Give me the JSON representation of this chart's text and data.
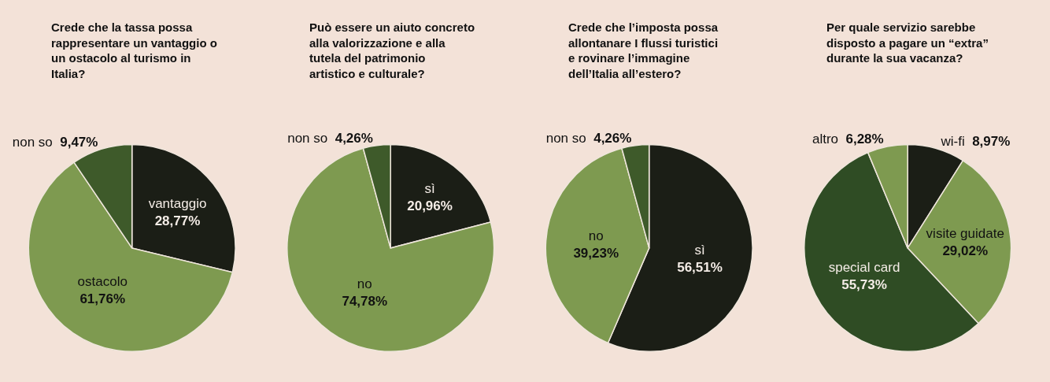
{
  "chart_data": [
    {
      "type": "pie",
      "title": "Crede che la tassa possa rappresentare un vantaggio o un ostacolo al turismo in Italia?",
      "categories": [
        "vantaggio",
        "ostacolo",
        "non so"
      ],
      "values": [
        28.77,
        61.76,
        9.47
      ],
      "value_labels": [
        "28,77%",
        "61,76%",
        "9,47%"
      ],
      "colors": [
        "#1b1e16",
        "#7e9a50",
        "#3e5a2a"
      ]
    },
    {
      "type": "pie",
      "title": "Può essere un aiuto concreto alla valorizzazione e alla tutela del patrimonio artistico e culturale?",
      "categories": [
        "sì",
        "no",
        "non so"
      ],
      "values": [
        20.96,
        74.78,
        4.26
      ],
      "value_labels": [
        "20,96%",
        "74,78%",
        "4,26%"
      ],
      "colors": [
        "#1b1e16",
        "#7e9a50",
        "#3e5a2a"
      ]
    },
    {
      "type": "pie",
      "title": "Crede che l’imposta possa allontanare I flussi turistici e rovinare l’immagine dell’Italia all’estero?",
      "categories": [
        "sì",
        "no",
        "non so"
      ],
      "values": [
        56.51,
        39.23,
        4.26
      ],
      "value_labels": [
        "56,51%",
        "39,23%",
        "4,26%"
      ],
      "colors": [
        "#1b1e16",
        "#7e9a50",
        "#3e5a2a"
      ]
    },
    {
      "type": "pie",
      "title": "Per quale servizio sarebbe disposto a pagare un “extra” durante la sua vacanza?",
      "categories": [
        "wi-fi",
        "visite guidate",
        "special card",
        "altro"
      ],
      "values": [
        8.97,
        29.02,
        55.73,
        6.28
      ],
      "value_labels": [
        "8,97%",
        "29,02%",
        "55,73%",
        "6,28%"
      ],
      "colors": [
        "#1b1e16",
        "#7e9a50",
        "#2f4c24",
        "#7e9a50"
      ]
    }
  ]
}
